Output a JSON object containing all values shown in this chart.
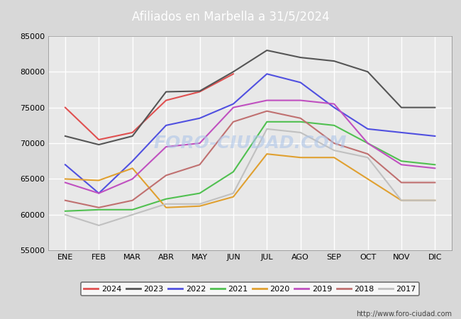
{
  "title": "Afiliados en Marbella a 31/5/2024",
  "title_color": "white",
  "title_bg_color": "#4472c4",
  "months": [
    "ENE",
    "FEB",
    "MAR",
    "ABR",
    "MAY",
    "JUN",
    "JUL",
    "AGO",
    "SEP",
    "OCT",
    "NOV",
    "DIC"
  ],
  "ylim": [
    55000,
    85000
  ],
  "yticks": [
    55000,
    60000,
    65000,
    70000,
    75000,
    80000,
    85000
  ],
  "series": [
    {
      "label": "2024",
      "color": "#e05050",
      "data": [
        75000,
        70500,
        71500,
        76000,
        77200,
        79700,
        null,
        null,
        null,
        null,
        null,
        null
      ]
    },
    {
      "label": "2023",
      "color": "#555555",
      "data": [
        71000,
        69800,
        71000,
        77200,
        77300,
        80000,
        83000,
        82000,
        81500,
        80000,
        75000,
        75000
      ]
    },
    {
      "label": "2022",
      "color": "#5050e0",
      "data": [
        67000,
        63000,
        67500,
        72500,
        73500,
        75500,
        79700,
        78500,
        75000,
        72000,
        71500,
        71000
      ]
    },
    {
      "label": "2021",
      "color": "#50c050",
      "data": [
        60500,
        60700,
        60700,
        62200,
        63000,
        66000,
        73000,
        73000,
        72500,
        70000,
        67500,
        67000
      ]
    },
    {
      "label": "2020",
      "color": "#e0a030",
      "data": [
        65000,
        64800,
        66500,
        61000,
        61200,
        62500,
        68500,
        68000,
        68000,
        65000,
        62000,
        62000
      ]
    },
    {
      "label": "2019",
      "color": "#c050c0",
      "data": [
        64500,
        63000,
        65000,
        69500,
        70000,
        75000,
        76000,
        76000,
        75500,
        70000,
        67000,
        66500
      ]
    },
    {
      "label": "2018",
      "color": "#c07070",
      "data": [
        62000,
        61000,
        62000,
        65500,
        67000,
        73000,
        74500,
        73500,
        70000,
        68500,
        64500,
        64500
      ]
    },
    {
      "label": "2017",
      "color": "#c0c0c0",
      "data": [
        60000,
        58500,
        60000,
        61500,
        61500,
        63000,
        72000,
        71500,
        69000,
        68000,
        62000,
        62000
      ]
    }
  ],
  "watermark": "FORO-CIUDAD.COM",
  "url": "http://www.foro-ciudad.com",
  "bg_color": "#d8d8d8",
  "plot_bg_color": "#e8e8e8",
  "grid_color": "white"
}
